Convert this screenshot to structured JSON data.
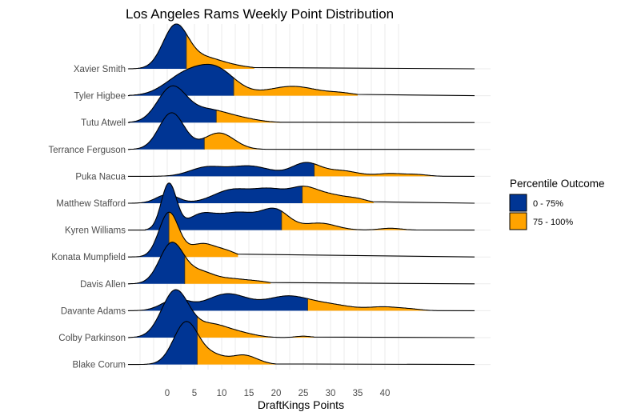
{
  "chart_data": {
    "type": "ridgeline",
    "title": "Los Angeles Rams Weekly Point Distribution",
    "xlabel": "DraftKings Points",
    "ylabel": "",
    "x_ticks": [
      0,
      5,
      10,
      15,
      20,
      25,
      30,
      35,
      40
    ],
    "x_tick_labels": [
      "0",
      "5",
      "10",
      "15",
      "20",
      "25",
      "30",
      "35",
      "40"
    ],
    "xlim": [
      -7.2,
      56.5
    ],
    "grid": true,
    "legend": {
      "title": "Percentile Outcome",
      "position": "right",
      "entries": [
        {
          "label": "0 - 75%",
          "color": "#003594"
        },
        {
          "label": "75 - 100%",
          "color": "#FFA300"
        }
      ]
    },
    "series": [
      {
        "name": "Xavier Smith",
        "p75": 3.5,
        "peak_scale": 1.0,
        "components": [
          [
            1.5,
            2.3,
            1.0
          ],
          [
            6.5,
            3.0,
            0.22
          ],
          [
            11,
            3.5,
            0.08
          ]
        ],
        "range": [
          -7,
          16
        ]
      },
      {
        "name": "Tyler Higbee",
        "p75": 12.2,
        "peak_scale": 0.7,
        "components": [
          [
            3,
            3.5,
            0.7
          ],
          [
            9,
            3.5,
            0.95
          ],
          [
            23,
            4.5,
            0.35
          ],
          [
            32,
            2.5,
            0.08
          ]
        ],
        "range": [
          -7,
          35
        ]
      },
      {
        "name": "Tutu Atwell",
        "p75": 9.0,
        "peak_scale": 0.82,
        "components": [
          [
            0.8,
            2.6,
            1.0
          ],
          [
            7,
            3.5,
            0.35
          ],
          [
            13,
            3.5,
            0.12
          ]
        ],
        "range": [
          -7,
          21
        ]
      },
      {
        "name": "Terrance Ferguson",
        "p75": 6.8,
        "peak_scale": 0.82,
        "components": [
          [
            0.8,
            2.3,
            1.0
          ],
          [
            9.5,
            2.8,
            0.45
          ]
        ],
        "range": [
          -7,
          18
        ]
      },
      {
        "name": "Puka Nacua",
        "p75": 27.0,
        "peak_scale": 0.31,
        "components": [
          [
            7,
            3.0,
            0.6
          ],
          [
            15,
            4.0,
            0.75
          ],
          [
            25.5,
            2.6,
            0.95
          ],
          [
            32,
            3.0,
            0.4
          ],
          [
            41,
            2.5,
            0.2
          ],
          [
            46,
            2.0,
            0.12
          ]
        ],
        "range": [
          -3,
          51
        ]
      },
      {
        "name": "Matthew Stafford",
        "p75": 24.8,
        "peak_scale": 0.38,
        "components": [
          [
            0,
            2.0,
            0.55
          ],
          [
            12,
            3.5,
            0.85
          ],
          [
            19,
            3.0,
            0.8
          ],
          [
            25,
            2.5,
            0.85
          ],
          [
            30,
            3.0,
            0.5
          ],
          [
            35,
            2.0,
            0.2
          ]
        ],
        "range": [
          -7,
          38
        ]
      },
      {
        "name": "Kyren Williams",
        "p75": 21.0,
        "peak_scale": 1.05,
        "components": [
          [
            0.3,
            1.4,
            1.0
          ],
          [
            6,
            2.5,
            0.28
          ],
          [
            13,
            4.0,
            0.38
          ],
          [
            20,
            2.5,
            0.38
          ],
          [
            28,
            3.0,
            0.15
          ],
          [
            41,
            2.0,
            0.04
          ]
        ],
        "range": [
          -4,
          46
        ]
      },
      {
        "name": "Konata Mumpfield",
        "p75": 0.3,
        "peak_scale": 1.0,
        "components": [
          [
            0.3,
            1.8,
            1.0
          ],
          [
            6.5,
            2.5,
            0.3
          ],
          [
            11,
            1.8,
            0.1
          ]
        ],
        "range": [
          -7,
          13
        ]
      },
      {
        "name": "Davis Allen",
        "p75": 3.2,
        "peak_scale": 0.93,
        "components": [
          [
            0.8,
            2.2,
            1.0
          ],
          [
            6,
            2.5,
            0.28
          ],
          [
            12,
            3.0,
            0.12
          ],
          [
            17,
            2.0,
            0.04
          ]
        ],
        "range": [
          -7,
          19
        ]
      },
      {
        "name": "Davante Adams",
        "p75": 25.8,
        "peak_scale": 0.38,
        "components": [
          [
            1.5,
            2.5,
            0.6
          ],
          [
            11,
            3.8,
            0.9
          ],
          [
            22,
            4.0,
            0.75
          ],
          [
            30,
            4.0,
            0.3
          ],
          [
            40,
            3.0,
            0.2
          ],
          [
            45,
            2.0,
            0.06
          ]
        ],
        "range": [
          -7,
          50
        ]
      },
      {
        "name": "Colby Parkinson",
        "p75": 5.5,
        "peak_scale": 1.07,
        "components": [
          [
            1.5,
            2.5,
            1.0
          ],
          [
            8,
            2.8,
            0.25
          ],
          [
            13,
            3.0,
            0.1
          ],
          [
            25,
            1.5,
            0.03
          ]
        ],
        "range": [
          -7,
          27
        ]
      },
      {
        "name": "Blake Corum",
        "p75": 5.5,
        "peak_scale": 0.96,
        "components": [
          [
            3.5,
            2.3,
            1.0
          ],
          [
            8.5,
            2.0,
            0.18
          ],
          [
            14,
            2.5,
            0.22
          ]
        ],
        "range": [
          -7,
          20
        ]
      }
    ]
  }
}
